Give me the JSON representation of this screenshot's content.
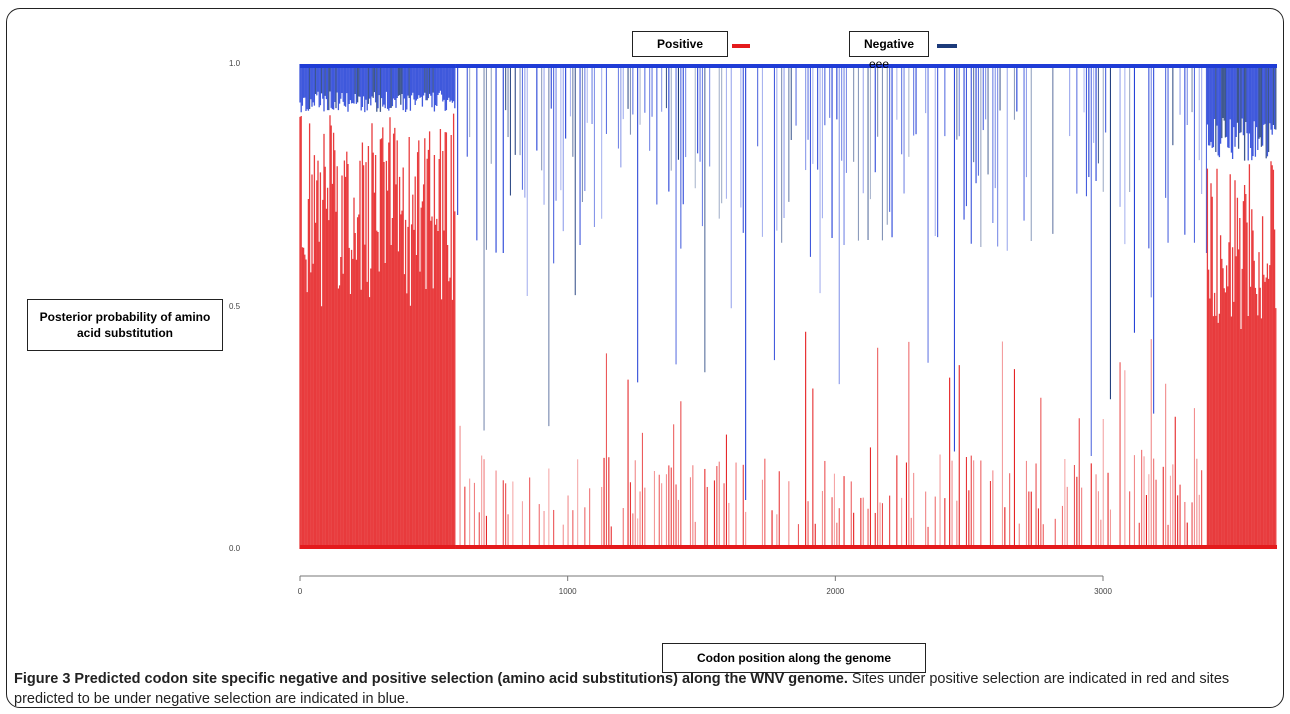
{
  "legend": {
    "positive_label": "Positive",
    "negative_label": "Negative",
    "negative_extra": "eee"
  },
  "colors": {
    "positive": "#e41a1c",
    "negative": "#1f3cd6",
    "negative_dark": "#1c3a7a"
  },
  "caption": {
    "label": "Figure 3",
    "title": " Predicted codon site specific negative and positive selection (amino acid substitutions) along the WNV genome.",
    "body": " Sites under positive selection are indicated in red and sites predicted to be under negative selection are indicated in blue."
  },
  "chart_data": {
    "type": "line",
    "ylabel": "Posterior probability of amino acid substitution",
    "xlabel": "Codon position along the genome",
    "xlim": [
      0,
      3650
    ],
    "ylim": [
      0,
      1
    ],
    "x_ticks": [
      0,
      1000,
      2000,
      3000
    ],
    "x_tick_labels": [
      "0",
      "1000",
      "2000",
      "3000"
    ],
    "y_ticks": [
      0,
      0.5,
      1
    ],
    "y_tick_labels": [
      "0.0",
      "0.5",
      "1.0"
    ],
    "grid": false,
    "legend_position": "top",
    "series": [
      {
        "name": "Positive",
        "color": "#e41a1c",
        "segments": [
          {
            "x_start": 0,
            "x_end": 580,
            "baseline": 0.0,
            "level": 0.9,
            "density": "dense"
          },
          {
            "x_start": 580,
            "x_end": 3390,
            "baseline": 0.0,
            "level": 0.3,
            "density": "sparse"
          },
          {
            "x_start": 3390,
            "x_end": 3650,
            "baseline": 0.0,
            "level": 0.8,
            "density": "dense"
          }
        ]
      },
      {
        "name": "Negative",
        "color": "#1f3cd6",
        "segments": [
          {
            "x_start": 0,
            "x_end": 580,
            "baseline": 1.0,
            "level": 0.1,
            "density": "dense"
          },
          {
            "x_start": 580,
            "x_end": 3390,
            "baseline": 1.0,
            "level": 0.6,
            "density": "sparse"
          },
          {
            "x_start": 3390,
            "x_end": 3650,
            "baseline": 1.0,
            "level": 0.2,
            "density": "dense"
          }
        ]
      }
    ]
  }
}
